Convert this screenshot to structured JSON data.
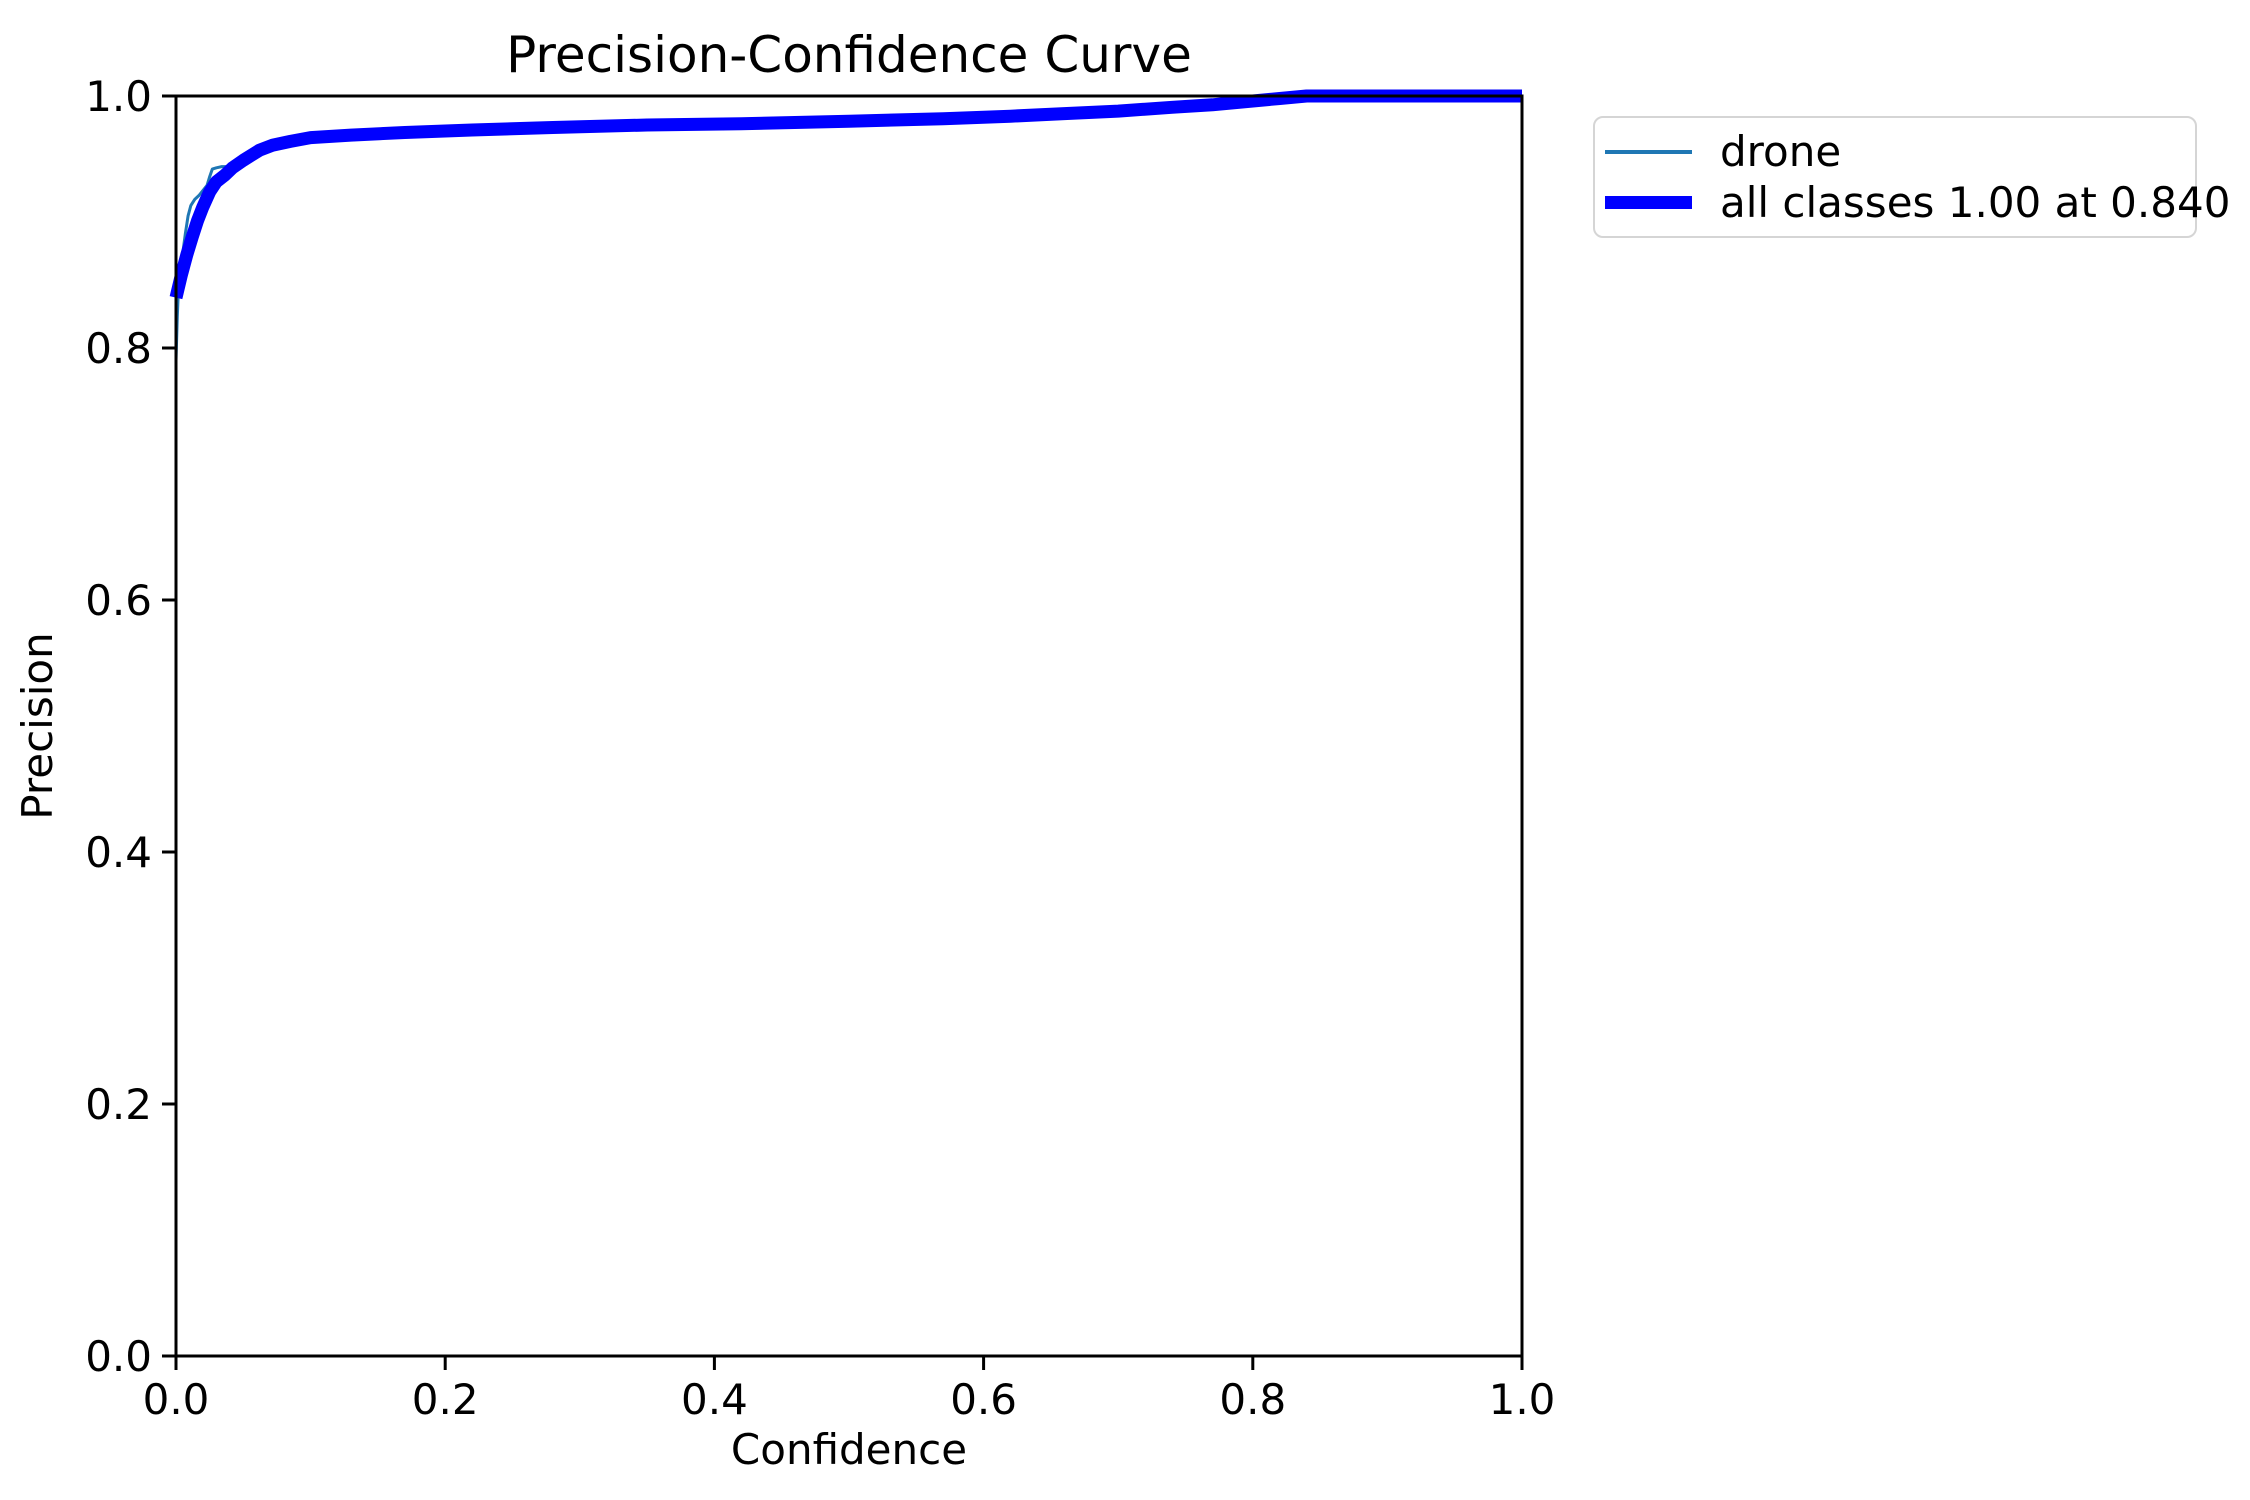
{
  "chart_data": {
    "type": "line",
    "title": "Precision-Confidence Curve",
    "xlabel": "Confidence",
    "ylabel": "Precision",
    "xlim": [
      0.0,
      1.0
    ],
    "ylim": [
      0.0,
      1.0
    ],
    "xticks": [
      "0.0",
      "0.2",
      "0.4",
      "0.6",
      "0.8",
      "1.0"
    ],
    "yticks": [
      "0.0",
      "0.2",
      "0.4",
      "0.6",
      "0.8",
      "1.0"
    ],
    "grid": false,
    "background": "#ffffff",
    "axis_color": "#000000",
    "legend_position": "outside-upper-right",
    "series": [
      {
        "name": "drone",
        "color": "#1f77b4",
        "linewidth": 3,
        "x": [
          0.0,
          0.001,
          0.002,
          0.003,
          0.005,
          0.007,
          0.009,
          0.011,
          0.014,
          0.017,
          0.02,
          0.023,
          0.025,
          0.027,
          0.03,
          0.034,
          0.038,
          0.042,
          0.046,
          0.05,
          0.062,
          0.072,
          0.085,
          0.1,
          0.13,
          0.17,
          0.22,
          0.28,
          0.35,
          0.42,
          0.5,
          0.57,
          0.62,
          0.66,
          0.7,
          0.74,
          0.77,
          0.8,
          0.82,
          0.84,
          0.9,
          1.0
        ],
        "y": [
          0.79,
          0.825,
          0.852,
          0.862,
          0.875,
          0.891,
          0.905,
          0.913,
          0.918,
          0.921,
          0.925,
          0.929,
          0.936,
          0.942,
          0.943,
          0.944,
          0.944,
          0.945,
          0.947,
          0.949,
          0.957,
          0.961,
          0.964,
          0.967,
          0.969,
          0.971,
          0.973,
          0.975,
          0.977,
          0.978,
          0.98,
          0.982,
          0.984,
          0.986,
          0.988,
          0.991,
          0.993,
          0.996,
          0.998,
          1.0,
          1.0,
          1.0
        ]
      },
      {
        "name": "all classes 1.00 at 0.840",
        "color": "#0000ff",
        "linewidth": 13,
        "x": [
          0.0,
          0.004,
          0.008,
          0.012,
          0.016,
          0.02,
          0.025,
          0.03,
          0.036,
          0.042,
          0.05,
          0.062,
          0.072,
          0.085,
          0.1,
          0.13,
          0.17,
          0.22,
          0.28,
          0.35,
          0.42,
          0.5,
          0.57,
          0.62,
          0.66,
          0.7,
          0.74,
          0.77,
          0.8,
          0.82,
          0.84,
          0.9,
          1.0
        ],
        "y": [
          0.84,
          0.858,
          0.874,
          0.888,
          0.901,
          0.912,
          0.924,
          0.932,
          0.937,
          0.943,
          0.949,
          0.957,
          0.961,
          0.964,
          0.967,
          0.969,
          0.971,
          0.973,
          0.975,
          0.977,
          0.978,
          0.98,
          0.982,
          0.984,
          0.986,
          0.988,
          0.991,
          0.993,
          0.996,
          0.998,
          1.0,
          1.0,
          1.0
        ]
      }
    ],
    "annotation": "all classes reach precision 1.00 at confidence 0.840"
  }
}
